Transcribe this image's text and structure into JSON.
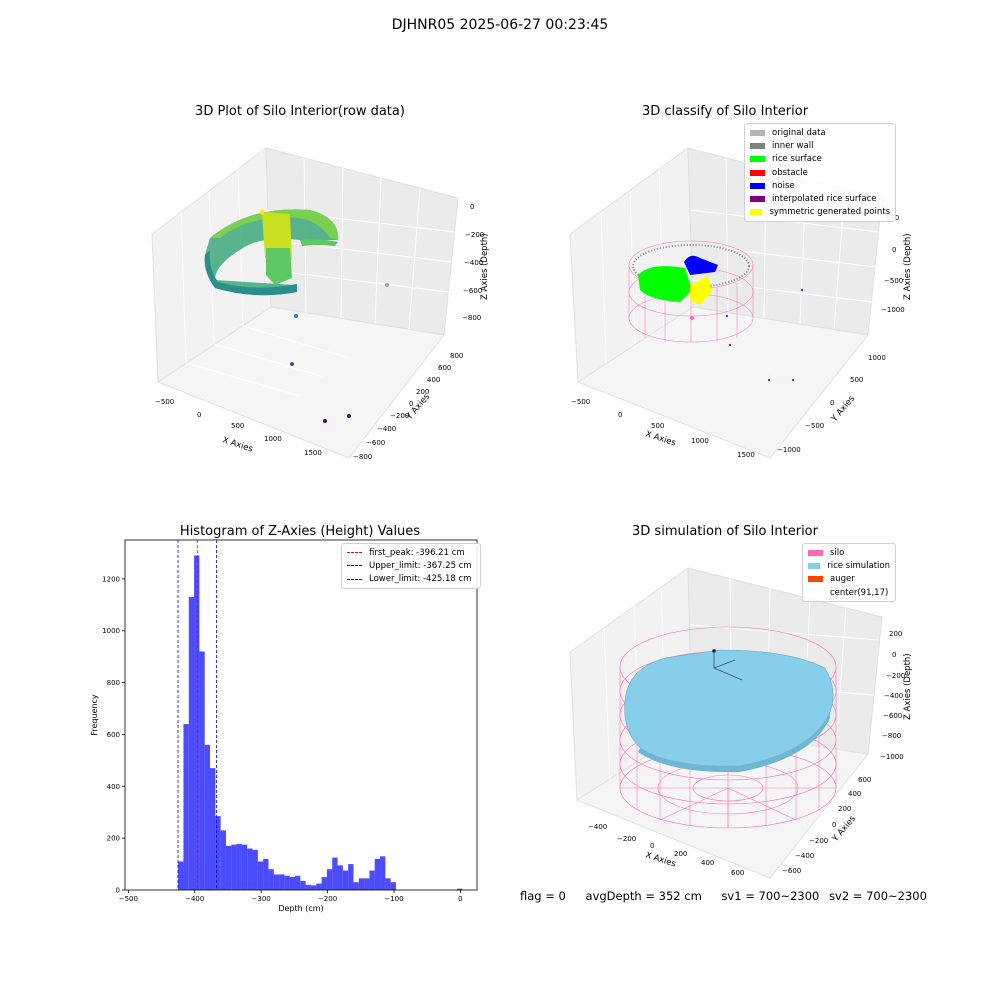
{
  "figure": {
    "title": "DJHNR05 2025-06-27 00:23:45",
    "status": {
      "flag": "flag = 0",
      "avg_depth": "avgDepth = 352 cm",
      "sv1": "sv1 = 700~2300",
      "sv2": "sv2 = 700~2300"
    }
  },
  "chart_data": [
    {
      "type": "scatter3d",
      "title": "3D Plot of Silo Interior(row data)",
      "xlabel": "X Axies",
      "ylabel": "Y Axies",
      "zlabel": "Z Axies (Depth)",
      "x_ticks": [
        "−500",
        "0",
        "500",
        "1000",
        "1500"
      ],
      "y_ticks": [
        "−800",
        "−600",
        "−400",
        "−200",
        "0",
        "200",
        "400",
        "600",
        "800"
      ],
      "z_ticks": [
        "0",
        "−200",
        "−400",
        "−600",
        "−800"
      ],
      "colormap": "viridis",
      "outlier_points": [
        {
          "x": 1650,
          "y": 200,
          "z": -560
        },
        {
          "x": 1350,
          "y": -200,
          "z": -900
        },
        {
          "x": 1150,
          "y": -400,
          "z": -1000
        },
        {
          "x": 1500,
          "y": -600,
          "z": -1100
        },
        {
          "x": 1600,
          "y": -500,
          "z": -1050
        }
      ]
    },
    {
      "type": "scatter3d",
      "title": "3D classify of Silo Interior",
      "xlabel": "X Axies",
      "ylabel": "Y Axies",
      "zlabel": "Z Axies (Depth)",
      "x_ticks": [
        "−500",
        "0",
        "500",
        "1000",
        "1500"
      ],
      "y_ticks": [
        "−1000",
        "−500",
        "0",
        "500",
        "1000"
      ],
      "z_ticks": [
        "500",
        "0",
        "−500",
        "−1000"
      ],
      "legend": [
        {
          "label": "original data",
          "color": "#b3b3b3"
        },
        {
          "label": "inner wall",
          "color": "#808080"
        },
        {
          "label": "rice surface",
          "color": "#00ff00"
        },
        {
          "label": "obstacle",
          "color": "#ff0000"
        },
        {
          "label": "noise",
          "color": "#0000ff"
        },
        {
          "label": "interpolated rice surface",
          "color": "#800080"
        },
        {
          "label": "symmetric generated points",
          "color": "#ffff00"
        }
      ],
      "silo_color": "#ff69b4"
    },
    {
      "type": "bar",
      "title": "Histogram of Z-Axies (Height) Values",
      "xlabel": "Depth (cm)",
      "ylabel": "Frequency",
      "xlim": [
        -505,
        25
      ],
      "ylim": [
        0,
        1350
      ],
      "x_ticks": [
        -500,
        -400,
        -300,
        -200,
        -100,
        0
      ],
      "x_tick_labels": [
        "−500",
        "−400",
        "−300",
        "−200",
        "−100",
        "0"
      ],
      "y_ticks": [
        0,
        200,
        400,
        600,
        800,
        1000,
        1200
      ],
      "bar_color": "#0000ff",
      "bin_start": -425,
      "bin_width": 8,
      "values": [
        110,
        640,
        1130,
        1290,
        920,
        560,
        470,
        285,
        230,
        170,
        175,
        178,
        175,
        160,
        155,
        110,
        120,
        80,
        60,
        60,
        55,
        50,
        55,
        35,
        20,
        18,
        25,
        50,
        80,
        125,
        95,
        75,
        100,
        30,
        45,
        45,
        75,
        120,
        130,
        45,
        30
      ],
      "extra_bars": [
        {
          "x": -5,
          "value": 5
        }
      ],
      "lines": [
        {
          "label": "first_peak: -396.21 cm",
          "value": -396.21,
          "color": "#ff0000"
        },
        {
          "label": "Upper_limit: -367.25 cm",
          "value": -367.25,
          "color": "#0000ff"
        },
        {
          "label": "Lower_limit: -425.18 cm",
          "value": -425.18,
          "color": "#0000ff"
        }
      ]
    },
    {
      "type": "surface3d",
      "title": "3D simulation of Silo Interior",
      "xlabel": "X Axies",
      "ylabel": "Y Axies",
      "zlabel": "Z Axies (Depth)",
      "x_ticks": [
        "−400",
        "−200",
        "0",
        "200",
        "400",
        "600"
      ],
      "y_ticks": [
        "−600",
        "−400",
        "−200",
        "0",
        "200",
        "400",
        "600"
      ],
      "z_ticks": [
        "200",
        "0",
        "−200",
        "−400",
        "−600",
        "−800",
        "−1000"
      ],
      "legend": [
        {
          "label": "silo",
          "color": "#ff69b4"
        },
        {
          "label": "rice simulation",
          "color": "#87ceeb"
        },
        {
          "label": "auger",
          "color": "#ff4500"
        },
        {
          "label": "center(91,17)",
          "color": ""
        }
      ]
    }
  ]
}
